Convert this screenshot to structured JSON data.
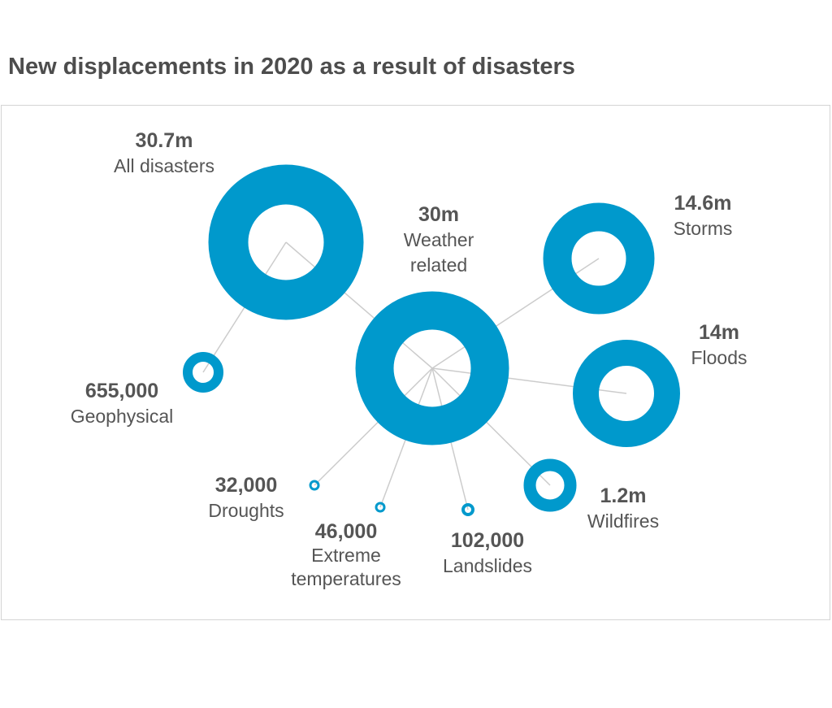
{
  "title": "New displacements in 2020 as a result of disasters",
  "colors": {
    "ring": "#0099cc",
    "connector": "#cccccc",
    "text": "#555555",
    "title": "#4d4d4d"
  },
  "nodes": {
    "all_disasters": {
      "value": "30.7m",
      "name": "All disasters"
    },
    "weather": {
      "value": "30m",
      "name_line1": "Weather",
      "name_line2": "related"
    },
    "geophysical": {
      "value": "655,000",
      "name": "Geophysical"
    },
    "storms": {
      "value": "14.6m",
      "name": "Storms"
    },
    "floods": {
      "value": "14m",
      "name": "Floods"
    },
    "wildfires": {
      "value": "1.2m",
      "name": "Wildfires"
    },
    "droughts": {
      "value": "32,000",
      "name": "Droughts"
    },
    "extreme_temperatures": {
      "value": "46,000",
      "name_line1": "Extreme",
      "name_line2": "temperatures"
    },
    "landslides": {
      "value": "102,000",
      "name": "Landslides"
    }
  }
}
